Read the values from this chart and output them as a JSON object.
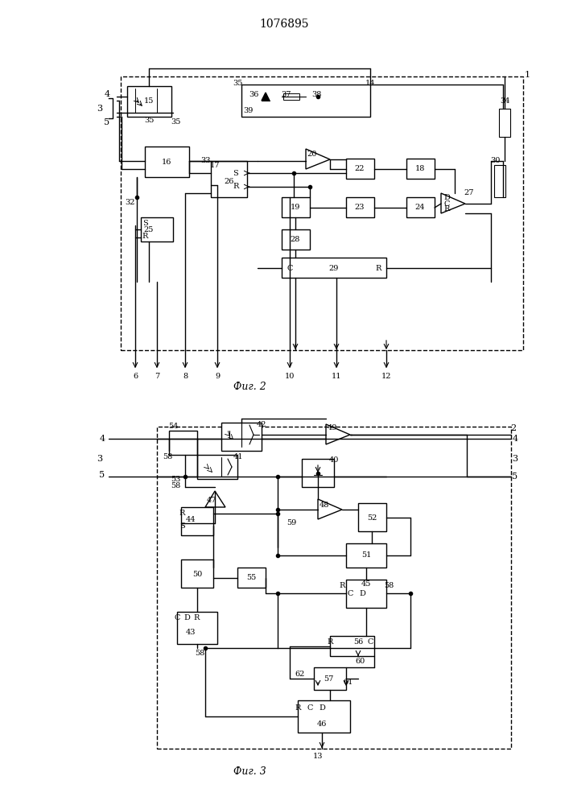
{
  "title": "1076895",
  "fig2_caption": "Фиг. 2",
  "fig3_caption": "Фиг. 3",
  "bg_color": "#ffffff",
  "line_color": "#000000",
  "fig_width": 7.07,
  "fig_height": 10.0
}
